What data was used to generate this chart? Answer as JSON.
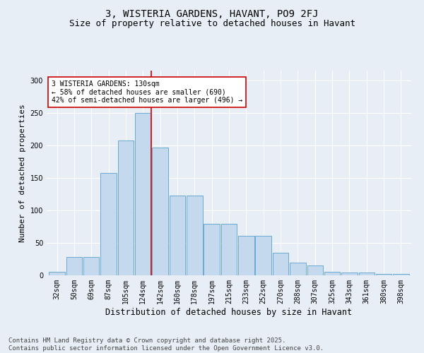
{
  "title1": "3, WISTERIA GARDENS, HAVANT, PO9 2FJ",
  "title2": "Size of property relative to detached houses in Havant",
  "xlabel": "Distribution of detached houses by size in Havant",
  "ylabel": "Number of detached properties",
  "categories": [
    "32sqm",
    "50sqm",
    "69sqm",
    "87sqm",
    "105sqm",
    "124sqm",
    "142sqm",
    "160sqm",
    "178sqm",
    "197sqm",
    "215sqm",
    "233sqm",
    "252sqm",
    "270sqm",
    "288sqm",
    "307sqm",
    "325sqm",
    "343sqm",
    "361sqm",
    "380sqm",
    "398sqm"
  ],
  "values": [
    5,
    28,
    28,
    157,
    207,
    250,
    197,
    123,
    123,
    79,
    79,
    61,
    61,
    35,
    20,
    15,
    5,
    4,
    4,
    2,
    2
  ],
  "bar_color": "#c5d9ee",
  "bar_edge_color": "#6aaad4",
  "vline_x": 5.5,
  "vline_color": "#cc0000",
  "annotation_text": "3 WISTERIA GARDENS: 130sqm\n← 58% of detached houses are smaller (690)\n42% of semi-detached houses are larger (496) →",
  "annotation_box_color": "#ffffff",
  "annotation_box_edge_color": "#cc0000",
  "ylim": [
    0,
    315
  ],
  "yticks": [
    0,
    50,
    100,
    150,
    200,
    250,
    300
  ],
  "bg_color": "#e8eef5",
  "plot_bg_color": "#e8eef5",
  "footer": "Contains HM Land Registry data © Crown copyright and database right 2025.\nContains public sector information licensed under the Open Government Licence v3.0.",
  "title1_fontsize": 10,
  "title2_fontsize": 9,
  "xlabel_fontsize": 8.5,
  "ylabel_fontsize": 8,
  "annotation_fontsize": 7,
  "footer_fontsize": 6.5,
  "tick_fontsize": 7
}
